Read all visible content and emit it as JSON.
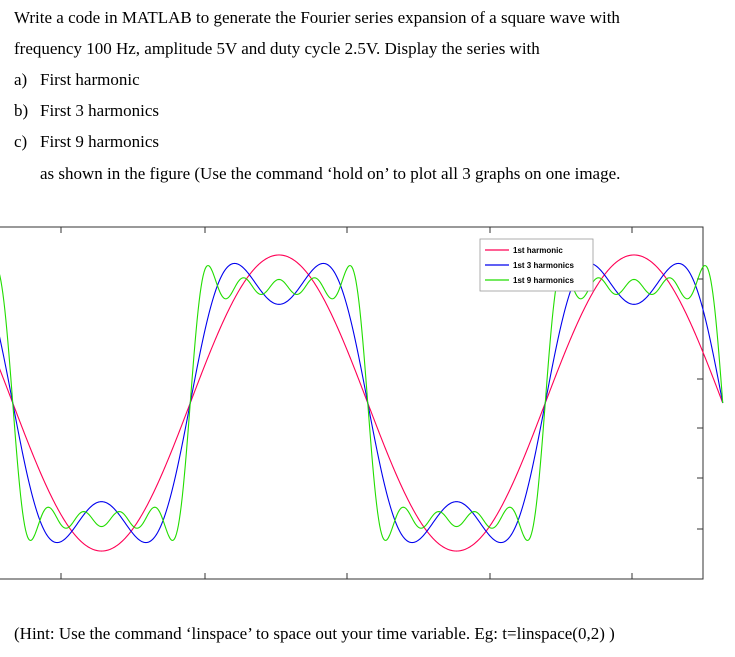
{
  "question": {
    "line1": "Write a code in MATLAB to generate the Fourier series expansion of a square wave with",
    "line2": "frequency 100 Hz, amplitude 5V and duty cycle 2.5V. Display the series with",
    "items": [
      {
        "letter": "a)",
        "text": "First harmonic"
      },
      {
        "letter": "b)",
        "text": "First 3 harmonics"
      },
      {
        "letter": "c)",
        "text": "First 9 harmonics"
      }
    ],
    "instruction": "as shown in the figure (Use the command ‘hold on’ to plot all 3 graphs on one image."
  },
  "hint": "(Hint: Use the command ‘linspace’ to space out your time variable. Eg: t=linspace(0,2) )",
  "chart_data": {
    "type": "line",
    "title": "",
    "xlabel": "",
    "ylabel": "",
    "x": [
      0,
      0.125,
      0.25,
      0.375,
      0.5,
      0.625,
      0.75,
      0.875,
      1.0,
      1.125,
      1.25,
      1.375,
      1.5,
      1.625,
      1.75,
      1.875,
      2.0
    ],
    "xlim": [
      0,
      2.0
    ],
    "ylim": [
      -1.6,
      1.6
    ],
    "grid": false,
    "legend_position": "top-right",
    "series": [
      {
        "name": "1st harmonic",
        "color": "#ff0055",
        "values": [
          0.0,
          0.9,
          1.273,
          0.9,
          0.0,
          -0.9,
          -1.273,
          -0.9,
          0.0,
          0.9,
          1.273,
          0.9,
          0.0,
          -0.9,
          -1.273,
          -0.9,
          0.0
        ]
      },
      {
        "name": "1st 3 harmonics",
        "color": "#0000ee",
        "values": [
          0.0,
          1.059,
          1.04,
          1.059,
          0.0,
          -1.059,
          -1.04,
          -1.059,
          0.0,
          1.059,
          1.04,
          1.059,
          0.0,
          -1.059,
          -1.04,
          -1.059,
          0.0
        ]
      },
      {
        "name": "1st 9 harmonics",
        "color": "#22dd00",
        "values": [
          0.0,
          1.042,
          0.964,
          1.042,
          0.0,
          -1.042,
          -0.964,
          -1.042,
          0.0,
          1.042,
          0.964,
          1.042,
          0.0,
          -1.042,
          -0.964,
          -1.042,
          0.0
        ]
      }
    ]
  }
}
